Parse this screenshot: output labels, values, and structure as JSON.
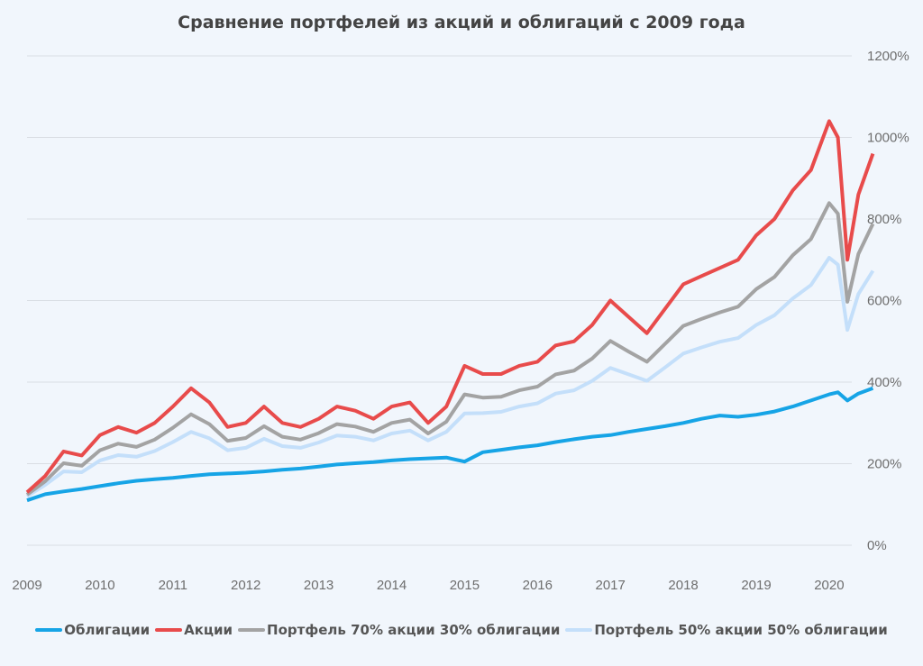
{
  "chart_data": {
    "type": "line",
    "title": "Сравнение портфелей из акций и облигаций  с 2009 года",
    "xlabel": "",
    "ylabel": "",
    "xlim": [
      2009,
      2020.6
    ],
    "ylim": [
      0,
      1200
    ],
    "x_ticks": [
      "2009",
      "2010",
      "2011",
      "2012",
      "2013",
      "2014",
      "2015",
      "2016",
      "2017",
      "2018",
      "2019",
      "2020"
    ],
    "y_ticks": [
      "0%",
      "200%",
      "400%",
      "600%",
      "800%",
      "1000%",
      "1200%"
    ],
    "grid": true,
    "legend_position": "bottom",
    "x": [
      2009.0,
      2009.25,
      2009.5,
      2009.75,
      2010.0,
      2010.25,
      2010.5,
      2010.75,
      2011.0,
      2011.25,
      2011.5,
      2011.75,
      2012.0,
      2012.25,
      2012.5,
      2012.75,
      2013.0,
      2013.25,
      2013.5,
      2013.75,
      2014.0,
      2014.25,
      2014.5,
      2014.75,
      2015.0,
      2015.25,
      2015.5,
      2015.75,
      2016.0,
      2016.25,
      2016.5,
      2016.75,
      2017.0,
      2017.25,
      2017.5,
      2017.75,
      2018.0,
      2018.25,
      2018.5,
      2018.75,
      2019.0,
      2019.25,
      2019.5,
      2019.75,
      2020.0,
      2020.12,
      2020.25,
      2020.4,
      2020.6
    ],
    "series": [
      {
        "name": "Портфель 50% акции 50% облигации",
        "color": "#c4dffa",
        "values": [
          120,
          148,
          181,
          179,
          208,
          221,
          217,
          231,
          253,
          278,
          262,
          233,
          239,
          261,
          243,
          239,
          252,
          269,
          266,
          257,
          274,
          281,
          257,
          278,
          323,
          324,
          327,
          340,
          348,
          372,
          380,
          403,
          435,
          419,
          403,
          436,
          470,
          485,
          499,
          508,
          540,
          564,
          605,
          638,
          705,
          688,
          528,
          616,
          673
        ]
      },
      {
        "name": "Портфель 70% акции 30% облигации",
        "color": "#a3a3a3",
        "values": [
          124,
          157,
          201,
          195,
          233,
          249,
          241,
          259,
          288,
          321,
          297,
          256,
          263,
          292,
          266,
          259,
          275,
          297,
          291,
          278,
          300,
          308,
          274,
          303,
          370,
          362,
          364,
          380,
          389,
          419,
          428,
          458,
          501,
          475,
          450,
          494,
          538,
          555,
          571,
          585,
          628,
          658,
          711,
          751,
          839,
          813,
          597,
          714,
          788
        ]
      },
      {
        "name": "Акции",
        "color": "#e84b4b",
        "values": [
          130,
          170,
          230,
          220,
          270,
          290,
          276,
          300,
          340,
          385,
          350,
          290,
          300,
          340,
          300,
          290,
          310,
          340,
          330,
          310,
          340,
          350,
          300,
          340,
          440,
          420,
          420,
          440,
          450,
          490,
          500,
          540,
          600,
          560,
          520,
          580,
          640,
          660,
          680,
          700,
          760,
          800,
          870,
          920,
          1040,
          1000,
          700,
          860,
          960
        ]
      },
      {
        "name": "Облигации",
        "color": "#16a4e6",
        "values": [
          110,
          125,
          132,
          138,
          145,
          152,
          158,
          162,
          165,
          170,
          174,
          176,
          178,
          181,
          185,
          188,
          193,
          198,
          201,
          204,
          208,
          211,
          213,
          215,
          205,
          228,
          234,
          240,
          245,
          253,
          260,
          266,
          270,
          278,
          285,
          292,
          300,
          310,
          318,
          315,
          320,
          328,
          340,
          355,
          370,
          375,
          355,
          372,
          385
        ]
      }
    ],
    "legend": [
      "Облигации",
      "Акции",
      "Портфель 70% акции 30% облигации",
      "Портфель 50% акции 50% облигации"
    ]
  }
}
